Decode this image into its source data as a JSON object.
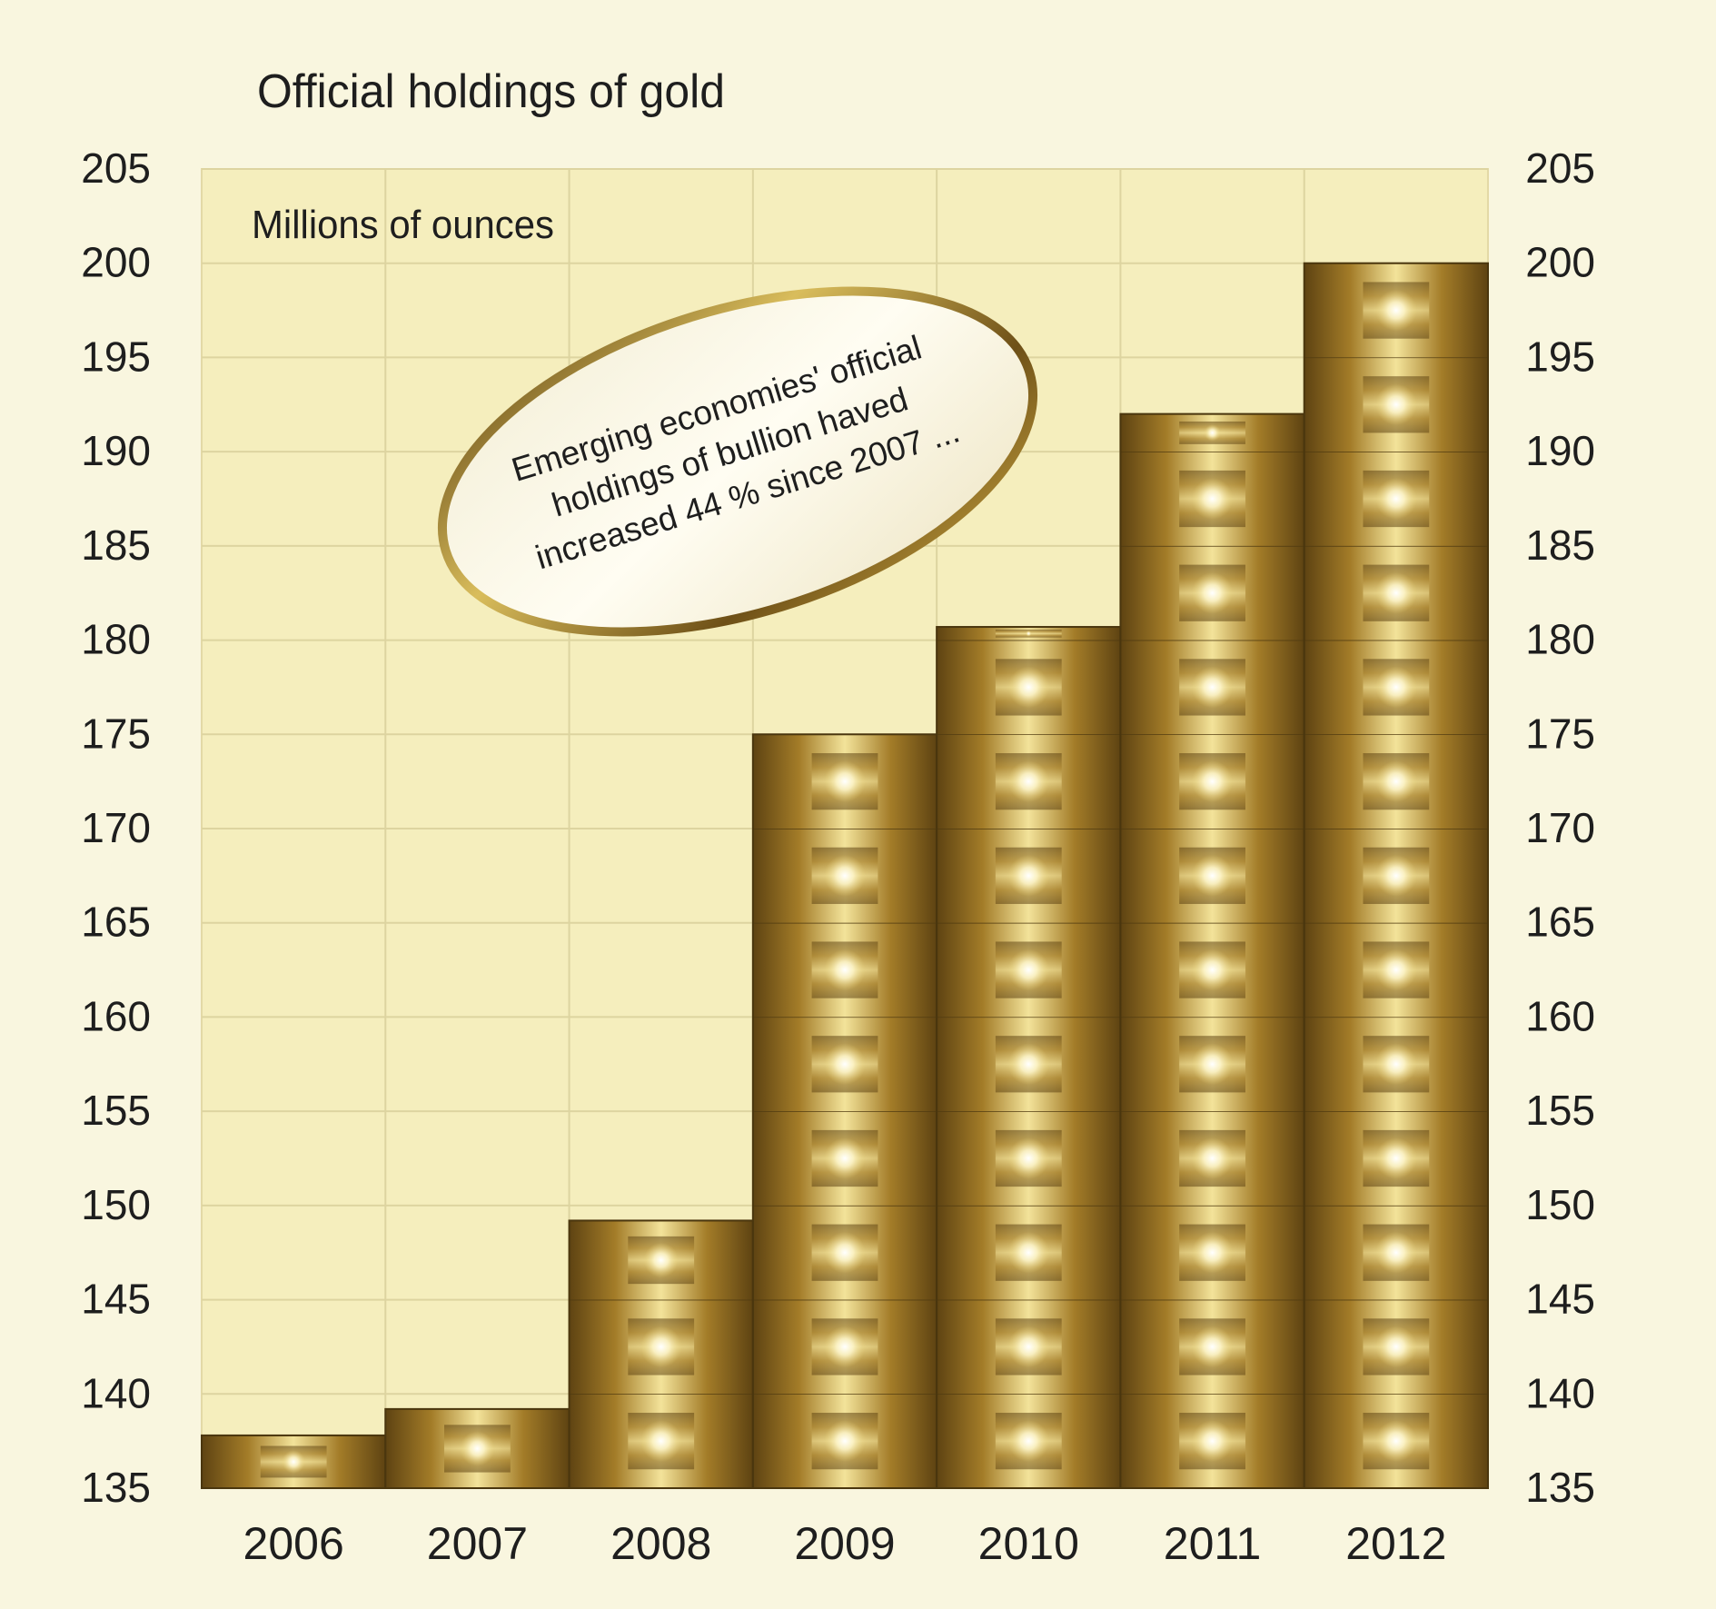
{
  "chart_data": {
    "type": "bar",
    "title": "Official holdings of gold",
    "ylabel": "Millions of ounces",
    "categories": [
      "2006",
      "2007",
      "2008",
      "2009",
      "2010",
      "2011",
      "2012"
    ],
    "values": [
      137.8,
      139.2,
      149.2,
      175.0,
      180.7,
      192.0,
      200.0
    ],
    "ylim": [
      135,
      205
    ],
    "yticks": [
      135,
      140,
      145,
      150,
      155,
      160,
      165,
      170,
      175,
      180,
      185,
      190,
      195,
      200,
      205
    ],
    "y_axis_sides": "left and right",
    "grid": true,
    "annotation": [
      "Emerging economies' official",
      "holdings of bullion haved",
      "increased 44 % since 2007 ..."
    ],
    "colors": {
      "background": "#f9f6df",
      "plot_background": "#f5eebd",
      "grid": "#ddd4a0",
      "bar_dark": "#6b4f17",
      "bar_mid": "#b38a2c",
      "bar_light": "#f7eba8"
    }
  }
}
